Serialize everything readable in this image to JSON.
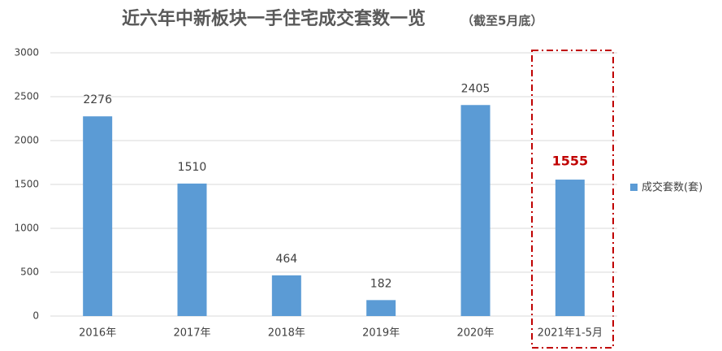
{
  "chart_data": {
    "type": "bar",
    "title": "近六年中新板块一手住宅成交套数一览",
    "subtitle": "（截至5月底）",
    "categories": [
      "2016年",
      "2017年",
      "2018年",
      "2019年",
      "2020年",
      "2021年1-5月"
    ],
    "series": [
      {
        "name": "成交套数(套)",
        "color": "#5b9bd5",
        "values": [
          2276,
          1510,
          464,
          182,
          2405,
          1555
        ]
      }
    ],
    "ylim": [
      0,
      3000
    ],
    "yticks": [
      0,
      500,
      1000,
      1500,
      2000,
      2500,
      3000
    ],
    "grid": true,
    "legend": "right"
  }
}
